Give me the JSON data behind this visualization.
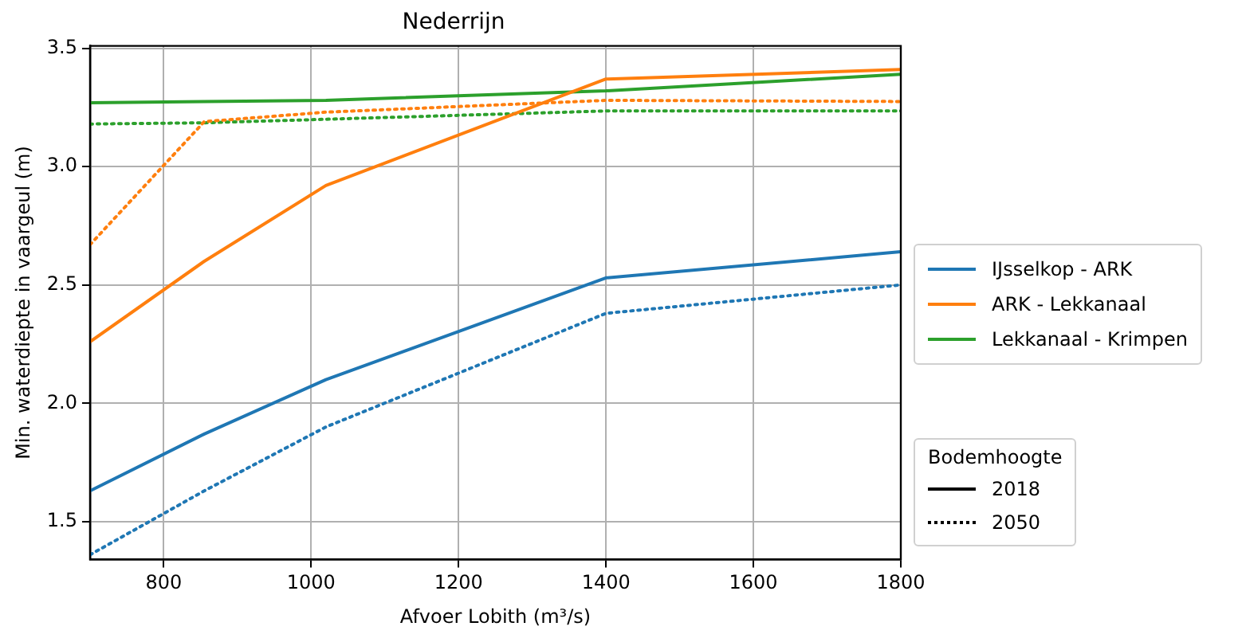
{
  "chart_data": {
    "type": "line",
    "title": "Nederrijn",
    "xlabel": "Afvoer Lobith (m³/s)",
    "ylabel": "Min. waterdiepte in vaargeul (m)",
    "legend_title": "Bodemhoogte",
    "annotations": [
      "2018",
      "2050"
    ],
    "x": [
      700,
      855,
      1020,
      1400,
      1800
    ],
    "xlim": [
      700,
      1800
    ],
    "xticks": [
      800,
      1000,
      1200,
      1400,
      1600,
      1800
    ],
    "ylim": [
      1.34,
      3.51
    ],
    "yticks": [
      1.5,
      {
        "value": 2,
        "label": "2.0"
      },
      2.5,
      {
        "value": 3,
        "label": "3.0"
      },
      3.5
    ],
    "grid": true,
    "legend": "right",
    "marker": "none",
    "series": [
      {
        "name": "IJsselkop - ARK",
        "color": "#1f77b4",
        "line_style": "solid",
        "values": [
          1.63,
          1.87,
          2.1,
          2.53,
          2.64
        ]
      },
      {
        "name": "ARK - Lekkanaal",
        "color": "#ff7f0e",
        "line_style": "solid",
        "values": [
          2.26,
          2.6,
          2.92,
          3.37,
          3.41
        ]
      },
      {
        "name": "Lekkanaal - Krimpen",
        "color": "#2ca02c",
        "line_style": "solid",
        "values": [
          3.27,
          3.275,
          3.28,
          3.32,
          3.39
        ]
      },
      {
        "color": "#1f77b4",
        "line_style": "dotted",
        "values": [
          1.36,
          1.63,
          1.9,
          2.38,
          2.5
        ]
      },
      {
        "color": "#ff7f0e",
        "line_style": "dotted",
        "values": [
          2.67,
          3.19,
          3.23,
          3.28,
          3.275
        ]
      },
      {
        "color": "#2ca02c",
        "line_style": "dotted",
        "values": [
          3.18,
          3.185,
          3.2,
          3.235,
          3.235
        ]
      }
    ]
  }
}
